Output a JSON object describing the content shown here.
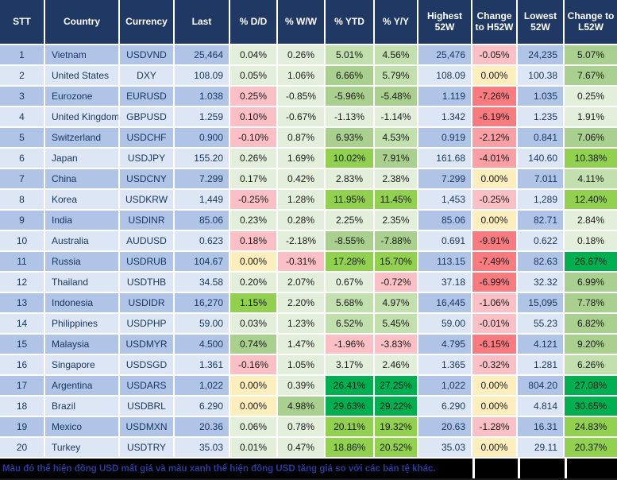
{
  "chart_data": {
    "type": "table",
    "columns": [
      "STT",
      "Country",
      "Currency",
      "Last",
      "% D/D",
      "% W/W",
      "% YTD",
      "% Y/Y",
      "Highest 52W",
      "Change to H52W",
      "Lowest 52W",
      "Change to L52W"
    ],
    "rows": [
      [
        "1",
        "Vietnam",
        "USDVND",
        "25,464",
        "0.04%",
        "0.26%",
        "5.01%",
        "4.56%",
        "25,476",
        "-0.05%",
        "24,235",
        "5.07%"
      ],
      [
        "2",
        "United States",
        "DXY",
        "108.09",
        "0.05%",
        "1.06%",
        "6.66%",
        "5.79%",
        "108.09",
        "0.00%",
        "100.38",
        "7.67%"
      ],
      [
        "3",
        "Eurozone",
        "EURUSD",
        "1.038",
        "0.25%",
        "-0.85%",
        "-5.96%",
        "-5.48%",
        "1.119",
        "-7.26%",
        "1.035",
        "0.25%"
      ],
      [
        "4",
        "United Kingdom",
        "GBPUSD",
        "1.259",
        "0.10%",
        "-0.67%",
        "-1.13%",
        "-1.14%",
        "1.342",
        "-6.19%",
        "1.235",
        "1.91%"
      ],
      [
        "5",
        "Switzerland",
        "USDCHF",
        "0.900",
        "-0.10%",
        "0.87%",
        "6.93%",
        "4.53%",
        "0.919",
        "-2.12%",
        "0.841",
        "7.06%"
      ],
      [
        "6",
        "Japan",
        "USDJPY",
        "155.20",
        "0.26%",
        "1.69%",
        "10.02%",
        "7.91%",
        "161.68",
        "-4.01%",
        "140.60",
        "10.38%"
      ],
      [
        "7",
        "China",
        "USDCNY",
        "7.299",
        "0.17%",
        "0.42%",
        "2.83%",
        "2.38%",
        "7.299",
        "0.00%",
        "7.011",
        "4.11%"
      ],
      [
        "8",
        "Korea",
        "USDKRW",
        "1,449",
        "-0.25%",
        "1.28%",
        "11.95%",
        "11.45%",
        "1,453",
        "-0.25%",
        "1,289",
        "12.40%"
      ],
      [
        "9",
        "India",
        "USDINR",
        "85.06",
        "0.23%",
        "0.28%",
        "2.25%",
        "2.35%",
        "85.06",
        "0.00%",
        "82.71",
        "2.84%"
      ],
      [
        "10",
        "Australia",
        "AUDUSD",
        "0.623",
        "0.18%",
        "-2.18%",
        "-8.55%",
        "-7.88%",
        "0.691",
        "-9.91%",
        "0.622",
        "0.18%"
      ],
      [
        "11",
        "Russia",
        "USDRUB",
        "104.67",
        "0.00%",
        "-0.31%",
        "17.28%",
        "15.70%",
        "113.15",
        "-7.49%",
        "82.63",
        "26.67%"
      ],
      [
        "12",
        "Thailand",
        "USDTHB",
        "34.58",
        "0.20%",
        "2.07%",
        "0.67%",
        "-0.72%",
        "37.18",
        "-6.99%",
        "32.32",
        "6.99%"
      ],
      [
        "13",
        "Indonesia",
        "USDIDR",
        "16,270",
        "1.15%",
        "2.20%",
        "5.68%",
        "4.97%",
        "16,445",
        "-1.06%",
        "15,095",
        "7.78%"
      ],
      [
        "14",
        "Philippines",
        "USDPHP",
        "59.00",
        "0.03%",
        "1.23%",
        "6.52%",
        "5.45%",
        "59.00",
        "-0.01%",
        "55.23",
        "6.82%"
      ],
      [
        "15",
        "Malaysia",
        "USDMYR",
        "4.500",
        "0.74%",
        "1.47%",
        "-1.96%",
        "-3.83%",
        "4.795",
        "-6.15%",
        "4.121",
        "9.20%"
      ],
      [
        "16",
        "Singapore",
        "USDSGD",
        "1.361",
        "-0.16%",
        "1.05%",
        "3.17%",
        "2.46%",
        "1.365",
        "-0.32%",
        "1.281",
        "6.26%"
      ],
      [
        "17",
        "Argentina",
        "USDARS",
        "1,022",
        "0.00%",
        "0.39%",
        "26.41%",
        "27.25%",
        "1,022",
        "0.00%",
        "804.20",
        "27.08%"
      ],
      [
        "18",
        "Brazil",
        "USDBRL",
        "6.290",
        "0.00%",
        "4.98%",
        "29.63%",
        "29.22%",
        "6.290",
        "0.00%",
        "4.814",
        "30.65%"
      ],
      [
        "19",
        "Mexico",
        "USDMXN",
        "20.36",
        "0.06%",
        "0.78%",
        "20.11%",
        "19.32%",
        "20.63",
        "-1.28%",
        "16.31",
        "24.83%"
      ],
      [
        "20",
        "Turkey",
        "USDTRY",
        "35.03",
        "0.01%",
        "0.47%",
        "18.86%",
        "20.52%",
        "35.03",
        "0.00%",
        "29.11",
        "20.37%"
      ]
    ]
  },
  "cell_colors": [
    [
      "g0",
      "g0",
      "g1",
      "g1",
      "rA",
      "g2"
    ],
    [
      "g0",
      "g0",
      "g2",
      "g1",
      "yy",
      "g2"
    ],
    [
      "rA",
      "g0",
      "g2",
      "g2",
      "rC",
      "g0"
    ],
    [
      "rA",
      "g0",
      "g0",
      "g0",
      "rC",
      "g0"
    ],
    [
      "rA",
      "g0",
      "g2",
      "g1",
      "rB",
      "g2"
    ],
    [
      "g0",
      "g0",
      "g3",
      "g2",
      "rB",
      "g3"
    ],
    [
      "g0",
      "g0",
      "g0",
      "g0",
      "yy",
      "g1"
    ],
    [
      "rA",
      "g0",
      "g3",
      "g3",
      "rA",
      "g3"
    ],
    [
      "g0",
      "g0",
      "g0",
      "g0",
      "yy",
      "g0"
    ],
    [
      "rA",
      "g0",
      "g2",
      "g2",
      "rC",
      "g0"
    ],
    [
      "yy",
      "rA",
      "g3",
      "g3",
      "rC",
      "g4"
    ],
    [
      "g0",
      "g0",
      "g0",
      "rA",
      "rC",
      "g2"
    ],
    [
      "g3",
      "g0",
      "g1",
      "g1",
      "rA",
      "g2"
    ],
    [
      "g0",
      "g0",
      "g1",
      "g1",
      "rA",
      "g2"
    ],
    [
      "g2",
      "g0",
      "rA",
      "rA",
      "rC",
      "g2"
    ],
    [
      "rA",
      "g0",
      "g0",
      "g0",
      "rA",
      "g1"
    ],
    [
      "yy",
      "g0",
      "g4",
      "g4",
      "yy",
      "g4"
    ],
    [
      "yy",
      "g2",
      "g4",
      "g4",
      "yy",
      "g4"
    ],
    [
      "g0",
      "g0",
      "g3",
      "g3",
      "rA",
      "g3"
    ],
    [
      "g0",
      "g0",
      "g3",
      "g3",
      "yy",
      "g3"
    ]
  ],
  "palette": {
    "headerBg": "#1F3864",
    "headerText": "#FFFFFF",
    "rowOdd": "#B0C4E7",
    "rowEven": "#DCE6F4",
    "navyText": "#17365D",
    "cellText": "#1A1A1A",
    "g0": "#E3EFDB",
    "g1": "#C2DFAE",
    "g2": "#A9D08E",
    "g3": "#92D050",
    "g4": "#00B050",
    "rA": "#FBC0C6",
    "rB": "#FA9FA4",
    "rC": "#F97B7F",
    "yy": "#FDEEBE",
    "footerBg": "#000000",
    "footerText": "#2B3A9B"
  },
  "footer": {
    "note": "Màu đỏ thể hiện đồng USD mất giá và màu xanh thể hiện đồng USD tăng giá so với các bản tệ khác."
  }
}
